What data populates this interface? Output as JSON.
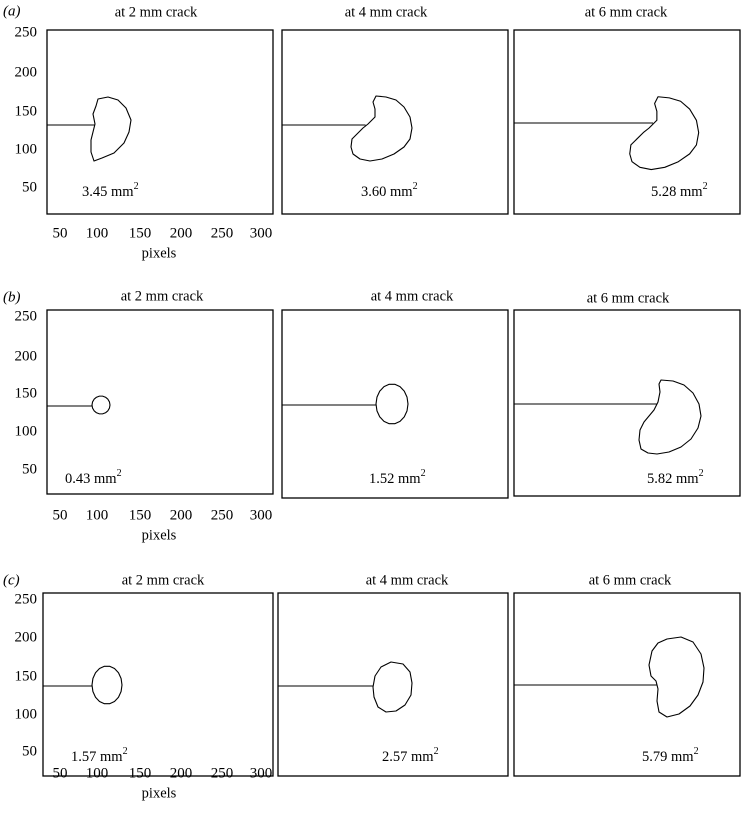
{
  "yticks": [
    "250",
    "200",
    "150",
    "100",
    "50"
  ],
  "xticks": [
    "50",
    "100",
    "150",
    "200",
    "250",
    "300"
  ],
  "xlabel": "pixels",
  "area_unit": "mm",
  "area_exp": "2",
  "rows": [
    {
      "label": "(a)",
      "panels": [
        {
          "title": "at 2 mm crack",
          "area": "3.45"
        },
        {
          "title": "at 4 mm crack",
          "area": "3.60"
        },
        {
          "title": "at 6 mm crack",
          "area": "5.28"
        }
      ]
    },
    {
      "label": "(b)",
      "panels": [
        {
          "title": "at 2 mm crack",
          "area": "0.43"
        },
        {
          "title": "at 4 mm crack",
          "area": "1.52"
        },
        {
          "title": "at 6 mm crack",
          "area": "5.82"
        }
      ]
    },
    {
      "label": "(c)",
      "panels": [
        {
          "title": "at 2 mm crack",
          "area": "1.57"
        },
        {
          "title": "at 4 mm crack",
          "area": "2.57"
        },
        {
          "title": "at 6 mm crack",
          "area": "5.79"
        }
      ]
    }
  ]
}
